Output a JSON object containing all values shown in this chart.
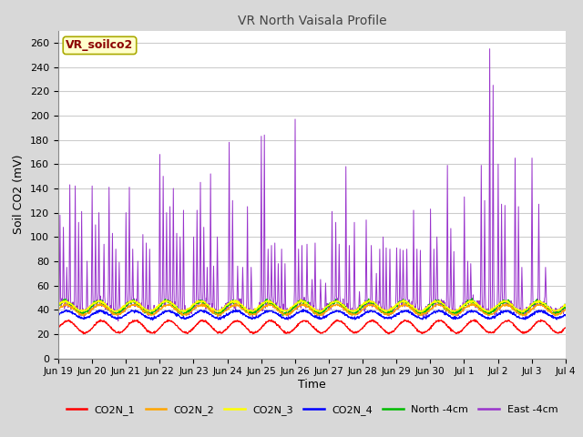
{
  "title": "VR North Vaisala Profile",
  "xlabel": "Time",
  "ylabel": "Soil CO2 (mV)",
  "ylim": [
    0,
    270
  ],
  "yticks": [
    0,
    20,
    40,
    60,
    80,
    100,
    120,
    140,
    160,
    180,
    200,
    220,
    240,
    260
  ],
  "annotation": "VR_soilco2",
  "annotation_color": "#8B0000",
  "annotation_bg": "#FFFFCC",
  "fig_bg_color": "#D8D8D8",
  "plot_bg_color": "#FFFFFF",
  "grid_color": "#CCCCCC",
  "series_colors": {
    "CO2N_1": "#FF0000",
    "CO2N_2": "#FFA500",
    "CO2N_3": "#FFFF00",
    "CO2N_4": "#0000FF",
    "North -4cm": "#00BB00",
    "East -4cm": "#9933CC"
  },
  "xtick_labels": [
    "Jun 19",
    "Jun 20",
    "Jun 21",
    "Jun 22",
    "Jun 23",
    "Jun 24",
    "Jun 25",
    "Jun 26",
    "Jun 27",
    "Jun 28",
    "Jun 29",
    "Jun 30",
    "Jul 1",
    "Jul 2",
    "Jul 3",
    "Jul 4"
  ],
  "n_points": 1500,
  "duration_days": 15
}
